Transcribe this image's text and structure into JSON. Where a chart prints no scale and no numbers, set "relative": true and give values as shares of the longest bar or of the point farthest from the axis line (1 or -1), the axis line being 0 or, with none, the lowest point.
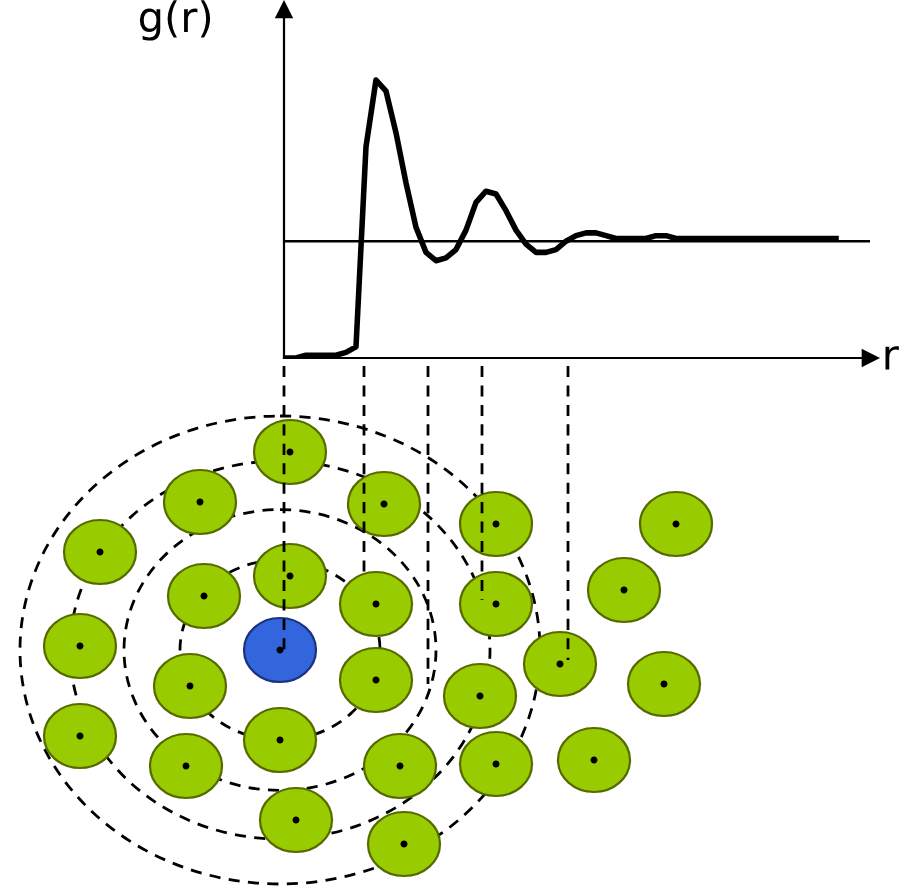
{
  "chart_data": {
    "type": "line",
    "xlabel": "r",
    "ylabel": "g(r)",
    "relative": true,
    "grid": false,
    "legend": false,
    "marker": "none",
    "line_style": "solid",
    "categories": [
      null,
      null,
      null,
      null,
      null,
      null,
      null,
      null,
      null,
      null,
      null,
      null,
      null,
      null,
      null,
      null,
      null,
      null,
      null,
      null,
      null,
      null,
      null,
      null,
      null,
      null,
      null,
      null,
      null,
      null,
      null,
      null,
      null,
      null,
      null,
      null,
      null,
      null,
      null,
      null,
      null,
      null,
      null,
      null,
      null,
      null,
      null,
      null,
      null,
      null,
      null,
      null,
      null,
      null,
      null,
      null
    ],
    "series": [
      {
        "color": "#000000",
        "values": [
          0.0,
          0.0,
          0.01,
          0.01,
          0.01,
          0.01,
          0.02,
          0.04,
          0.76,
          1.0,
          0.96,
          0.81,
          0.63,
          0.47,
          0.38,
          0.35,
          0.36,
          0.39,
          0.46,
          0.56,
          0.6,
          0.59,
          0.53,
          0.46,
          0.41,
          0.38,
          0.38,
          0.39,
          0.42,
          0.44,
          0.45,
          0.45,
          0.44,
          0.43,
          0.43,
          0.43,
          0.43,
          0.44,
          0.44,
          0.43,
          0.43,
          0.43,
          0.43,
          0.43,
          0.43,
          0.43,
          0.43,
          0.43,
          0.43,
          0.43,
          0.43,
          0.43,
          0.43,
          0.43,
          0.43,
          0.43
        ]
      }
    ],
    "ref_lines": [
      {
        "axis": "y",
        "value": 0.42,
        "color": "#000000"
      }
    ]
  }
}
